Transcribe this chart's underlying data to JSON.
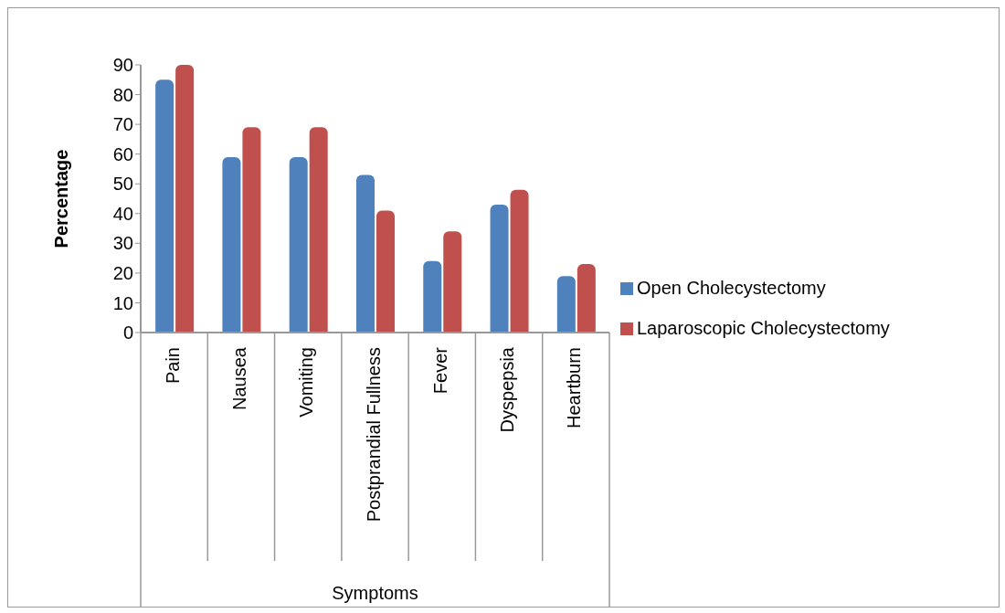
{
  "chart_data": {
    "type": "bar",
    "xlabel": "Symptoms",
    "ylabel": "Percentage",
    "categories": [
      "Pain",
      "Nausea",
      "Vomiting",
      "Postprandial Fullness",
      "Fever",
      "Dyspepsia",
      "Heartburn"
    ],
    "series": [
      {
        "name": "Open Cholecystectomy",
        "color": "#4f81bd",
        "values": [
          85,
          59,
          59,
          53,
          24,
          43,
          19
        ]
      },
      {
        "name": "Laparoscopic Cholecystectomy",
        "color": "#c0504d",
        "values": [
          90,
          69,
          69,
          41,
          34,
          48,
          23
        ]
      }
    ],
    "ylim": [
      0,
      90
    ],
    "yticks": [
      0,
      10,
      20,
      30,
      40,
      50,
      60,
      70,
      80,
      90
    ],
    "grid": false,
    "legend": "right"
  }
}
